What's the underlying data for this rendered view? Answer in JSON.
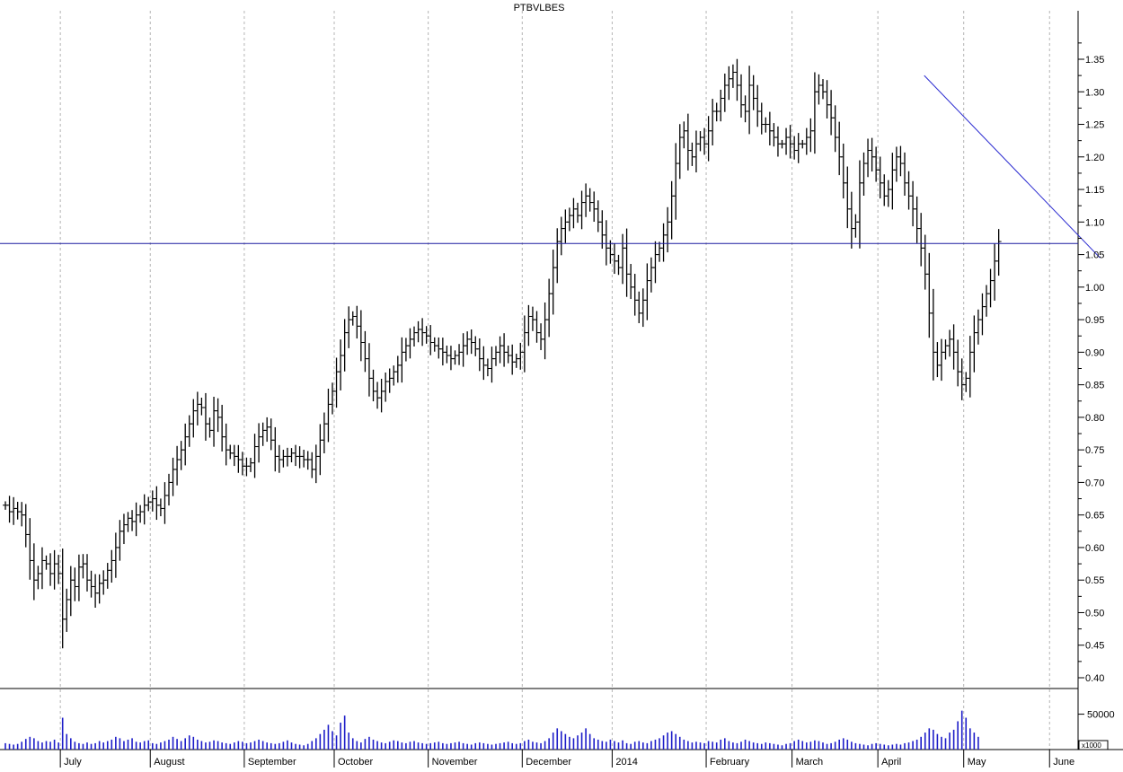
{
  "chart_data": {
    "type": "ohlc",
    "title": "PTBVLBES",
    "xlabel": "",
    "ylabel": "",
    "ylim": [
      0.36,
      1.42
    ],
    "grid": {
      "vertical_month_lines": true,
      "horizontal": false
    },
    "price_tick_labels": [
      "1.35",
      "1.30",
      "1.25",
      "1.20",
      "1.15",
      "1.10",
      "1.05",
      "1.00",
      "0.95",
      "0.90",
      "0.85",
      "0.80",
      "0.75",
      "0.70",
      "0.65",
      "0.60",
      "0.55",
      "0.50",
      "0.45",
      "0.40"
    ],
    "month_labels": [
      "July",
      "August",
      "September",
      "October",
      "November",
      "December",
      "2014",
      "February",
      "March",
      "April",
      "May",
      "June"
    ],
    "volume_tick_label": "50000",
    "volume_unit_label": "x1000",
    "volume_ylim": [
      0,
      85000
    ],
    "horizontal_line": {
      "value": 1.067,
      "color": "#1a1aa0"
    },
    "trend_line": {
      "start": {
        "day": 225,
        "value": 1.325
      },
      "end": {
        "day": 268,
        "value": 1.045
      },
      "color": "#2a2ad0"
    },
    "colors": {
      "bars": "#000000",
      "volume": "#1c1cc8",
      "month_grid": "#b4b4b4"
    },
    "month_start_day": [
      13,
      35,
      58,
      80,
      103,
      126,
      148,
      171,
      192,
      213,
      234,
      255
    ],
    "series": [
      {
        "name": "",
        "closes": [
          0.665,
          0.655,
          0.66,
          0.655,
          0.65,
          0.62,
          0.58,
          0.55,
          0.56,
          0.58,
          0.575,
          0.56,
          0.575,
          0.56,
          0.49,
          0.52,
          0.55,
          0.54,
          0.57,
          0.575,
          0.55,
          0.54,
          0.53,
          0.545,
          0.55,
          0.565,
          0.58,
          0.6,
          0.625,
          0.635,
          0.645,
          0.64,
          0.65,
          0.655,
          0.665,
          0.67,
          0.675,
          0.665,
          0.66,
          0.68,
          0.7,
          0.72,
          0.735,
          0.75,
          0.77,
          0.79,
          0.81,
          0.82,
          0.815,
          0.79,
          0.78,
          0.81,
          0.8,
          0.77,
          0.75,
          0.745,
          0.74,
          0.735,
          0.725,
          0.725,
          0.73,
          0.755,
          0.77,
          0.78,
          0.785,
          0.765,
          0.74,
          0.735,
          0.74,
          0.74,
          0.745,
          0.74,
          0.74,
          0.735,
          0.735,
          0.72,
          0.74,
          0.765,
          0.79,
          0.82,
          0.84,
          0.87,
          0.895,
          0.93,
          0.95,
          0.955,
          0.94,
          0.915,
          0.89,
          0.86,
          0.84,
          0.83,
          0.84,
          0.855,
          0.86,
          0.87,
          0.88,
          0.9,
          0.91,
          0.92,
          0.93,
          0.935,
          0.93,
          0.925,
          0.915,
          0.91,
          0.905,
          0.9,
          0.895,
          0.89,
          0.895,
          0.9,
          0.91,
          0.92,
          0.915,
          0.905,
          0.89,
          0.88,
          0.875,
          0.89,
          0.9,
          0.91,
          0.9,
          0.895,
          0.885,
          0.89,
          0.9,
          0.93,
          0.955,
          0.95,
          0.93,
          0.92,
          0.95,
          0.99,
          1.03,
          1.07,
          1.09,
          1.1,
          1.11,
          1.12,
          1.11,
          1.13,
          1.14,
          1.13,
          1.12,
          1.1,
          1.08,
          1.06,
          1.05,
          1.04,
          1.03,
          1.06,
          1.02,
          1.0,
          0.98,
          0.96,
          0.98,
          1.01,
          1.03,
          1.05,
          1.06,
          1.08,
          1.1,
          1.14,
          1.19,
          1.23,
          1.24,
          1.21,
          1.2,
          1.22,
          1.23,
          1.22,
          1.24,
          1.27,
          1.27,
          1.29,
          1.31,
          1.32,
          1.33,
          1.31,
          1.28,
          1.27,
          1.31,
          1.29,
          1.27,
          1.25,
          1.25,
          1.24,
          1.23,
          1.22,
          1.22,
          1.23,
          1.22,
          1.21,
          1.22,
          1.22,
          1.23,
          1.24,
          1.3,
          1.31,
          1.3,
          1.28,
          1.26,
          1.23,
          1.2,
          1.16,
          1.12,
          1.09,
          1.1,
          1.16,
          1.19,
          1.21,
          1.2,
          1.18,
          1.16,
          1.14,
          1.15,
          1.18,
          1.2,
          1.19,
          1.16,
          1.14,
          1.12,
          1.09,
          1.06,
          1.02,
          0.96,
          0.9,
          0.88,
          0.9,
          0.91,
          0.92,
          0.9,
          0.87,
          0.85,
          0.86,
          0.9,
          0.93,
          0.95,
          0.97,
          0.99,
          1.01,
          1.04,
          1.07
        ]
      }
    ],
    "volumes": [
      9000,
      8000,
      7000,
      8000,
      11000,
      15000,
      18000,
      16000,
      12000,
      10000,
      12000,
      11000,
      14000,
      10000,
      45000,
      22000,
      16000,
      11000,
      9000,
      8000,
      10000,
      8000,
      9000,
      12000,
      10000,
      12000,
      14000,
      18000,
      16000,
      12000,
      14000,
      16000,
      11000,
      10000,
      12000,
      13000,
      9000,
      8000,
      10000,
      12000,
      14000,
      18000,
      15000,
      12000,
      16000,
      20000,
      18000,
      14000,
      12000,
      10000,
      11000,
      13000,
      12000,
      10000,
      9000,
      8000,
      10000,
      12000,
      11000,
      9000,
      10000,
      12000,
      14000,
      12000,
      10000,
      9000,
      8000,
      9000,
      11000,
      13000,
      10000,
      8000,
      7000,
      6000,
      8000,
      12000,
      16000,
      22000,
      28000,
      35000,
      26000,
      20000,
      38000,
      48000,
      24000,
      16000,
      12000,
      10000,
      15000,
      18000,
      14000,
      12000,
      10000,
      9000,
      11000,
      13000,
      12000,
      10000,
      9000,
      11000,
      12000,
      10000,
      9000,
      8000,
      9000,
      10000,
      11000,
      9000,
      8000,
      9000,
      10000,
      11000,
      9000,
      8000,
      7000,
      9000,
      10000,
      9000,
      8000,
      7000,
      8000,
      9000,
      10000,
      11000,
      9000,
      8000,
      9000,
      12000,
      14000,
      11000,
      10000,
      9000,
      12000,
      16000,
      24000,
      30000,
      26000,
      22000,
      18000,
      16000,
      20000,
      24000,
      30000,
      22000,
      16000,
      14000,
      12000,
      11000,
      14000,
      12000,
      10000,
      13000,
      9000,
      8000,
      11000,
      12000,
      10000,
      9000,
      12000,
      14000,
      16000,
      20000,
      24000,
      26000,
      22000,
      18000,
      14000,
      12000,
      10000,
      11000,
      10000,
      9000,
      12000,
      11000,
      10000,
      14000,
      16000,
      12000,
      10000,
      9000,
      11000,
      14000,
      12000,
      10000,
      9000,
      8000,
      10000,
      9000,
      8000,
      7000,
      6000,
      8000,
      9000,
      12000,
      14000,
      12000,
      10000,
      11000,
      13000,
      12000,
      10000,
      8000,
      9000,
      11000,
      14000,
      16000,
      14000,
      11000,
      9000,
      8000,
      7000,
      6000,
      8000,
      9000,
      8000,
      7000,
      6000,
      7000,
      8000,
      7000,
      9000,
      10000,
      12000,
      14000,
      18000,
      24000,
      30000,
      28000,
      22000,
      18000,
      16000,
      24000,
      28000,
      40000,
      55000,
      45000,
      30000,
      24000,
      18000
    ]
  }
}
